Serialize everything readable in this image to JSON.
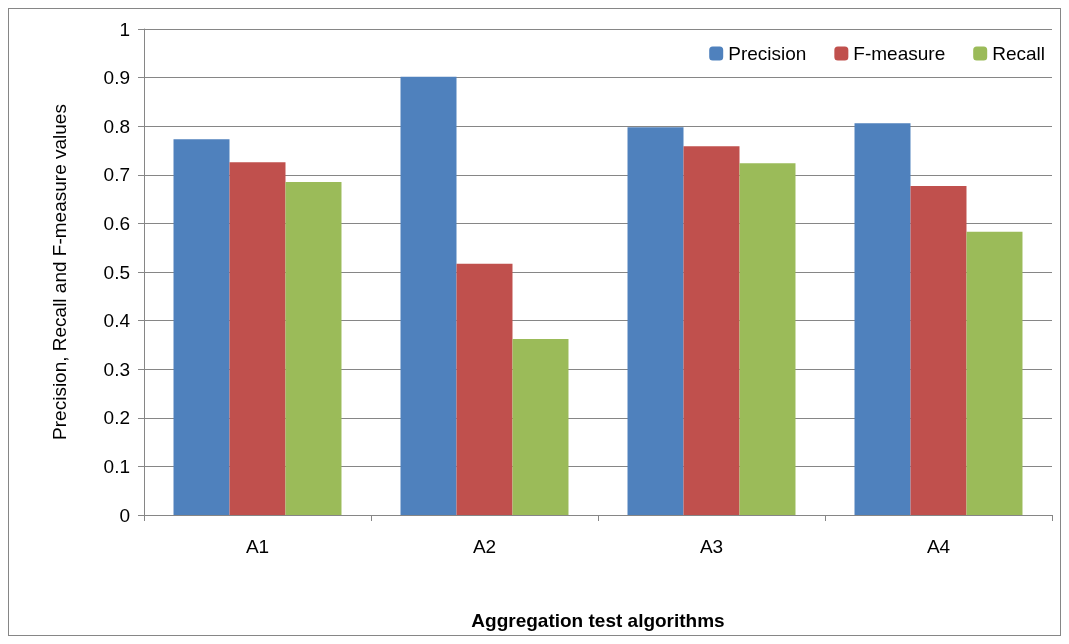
{
  "chart_data": {
    "type": "bar",
    "xlabel": "Aggregation test algorithms",
    "ylabel": "Precision, Recall and F-measure values",
    "categories": [
      "A1",
      "A2",
      "A3",
      "A4"
    ],
    "series": [
      {
        "name": "Precision",
        "color": "#4f81bd",
        "values": [
          0.773,
          0.902,
          0.798,
          0.806
        ]
      },
      {
        "name": "F-measure",
        "color": "#c0504d",
        "values": [
          0.726,
          0.517,
          0.759,
          0.677
        ]
      },
      {
        "name": "Recall",
        "color": "#9bbb59",
        "values": [
          0.685,
          0.362,
          0.724,
          0.583
        ]
      }
    ],
    "ylim": [
      0,
      1
    ],
    "yticks": [
      0,
      0.1,
      0.2,
      0.3,
      0.4,
      0.5,
      0.6,
      0.7,
      0.8,
      0.9,
      1
    ],
    "grid": "y",
    "legend": "top right"
  }
}
